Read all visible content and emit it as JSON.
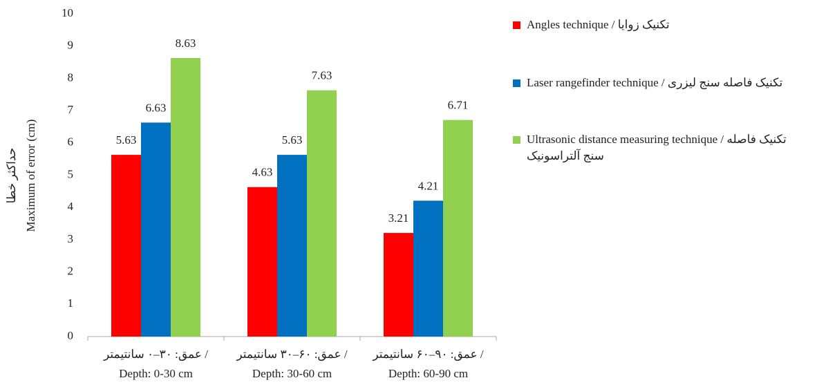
{
  "chart_data": {
    "type": "bar",
    "y_label": [
      "حداکثر خطا",
      "Maximum of error (cm)"
    ],
    "categories": [
      [
        "عمق: ۳۰–۰ سانتیمتر /",
        "Depth: 0-30 cm"
      ],
      [
        "عمق: ۶۰–۳۰ سانتیمتر /",
        "Depth: 30-60 cm"
      ],
      [
        "عمق: ۹۰–۶۰ سانتیمتر /",
        "Depth: 60-90 cm"
      ]
    ],
    "series": [
      {
        "name": "Angles technique / تکنیک زوایا",
        "color": "#ff0000",
        "values": [
          5.63,
          4.63,
          3.21
        ]
      },
      {
        "name": "Laser rangefinder technique / تکنیک فاصله سنج لیزری",
        "color": "#0070c0",
        "values": [
          6.63,
          5.63,
          4.21
        ]
      },
      {
        "name": "Ultrasonic distance measuring technique / تکنیک فاصله سنج آلتراسونیک",
        "color": "#92d050",
        "values": [
          8.63,
          7.63,
          6.71
        ]
      }
    ],
    "ylim": [
      0,
      10
    ],
    "yticks": [
      0,
      1,
      2,
      3,
      4,
      5,
      6,
      7,
      8,
      9,
      10
    ],
    "grid": false,
    "legend": "right"
  }
}
